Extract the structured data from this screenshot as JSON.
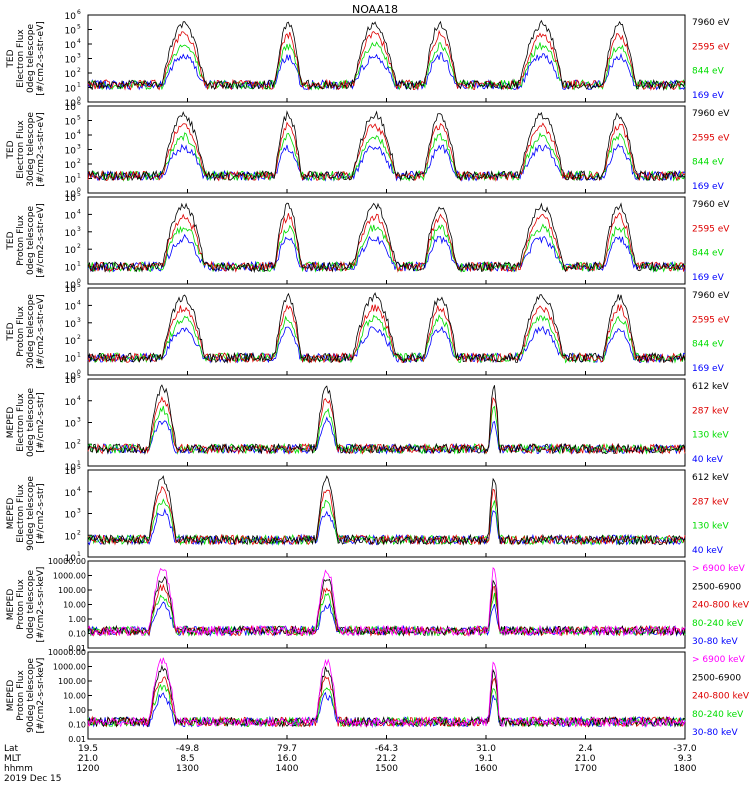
{
  "title": "NOAA18",
  "colors": {
    "black": "#000000",
    "red": "#dd0000",
    "green": "#00dd00",
    "blue": "#0000ff",
    "magenta": "#ff00ff"
  },
  "xaxis": {
    "row_labels": [
      "Lat",
      "MLT",
      "hhmm",
      "2019 Dec 15"
    ],
    "ticks": [
      {
        "lat": "19.5",
        "mlt": "21.0",
        "hhmm": "1200"
      },
      {
        "lat": "-49.8",
        "mlt": "8.5",
        "hhmm": "1300"
      },
      {
        "lat": "79.7",
        "mlt": "16.0",
        "hhmm": "1400"
      },
      {
        "lat": "-64.3",
        "mlt": "21.2",
        "hhmm": "1500"
      },
      {
        "lat": "31.0",
        "mlt": "9.1",
        "hhmm": "1600"
      },
      {
        "lat": "2.4",
        "mlt": "21.0",
        "hhmm": "1700"
      },
      {
        "lat": "-37.0",
        "mlt": "9.3",
        "hhmm": "1800"
      }
    ]
  },
  "chart_data": [
    {
      "type": "line",
      "ylabel": [
        "TED",
        "Electron Flux",
        "0deg telescope",
        "[#/cm2-s-str-eV]"
      ],
      "log": true,
      "ticks": [
        [
          "10",
          "0"
        ],
        [
          "10",
          "1"
        ],
        [
          "10",
          "2"
        ],
        [
          "10",
          "3"
        ],
        [
          "10",
          "4"
        ],
        [
          "10",
          "5"
        ],
        [
          "10",
          "6"
        ]
      ],
      "ylim_exp": [
        0,
        6
      ],
      "series": [
        {
          "name": "7960 eV",
          "color": "black"
        },
        {
          "name": "2595 eV",
          "color": "red"
        },
        {
          "name": "844 eV",
          "color": "green"
        },
        {
          "name": "169 eV",
          "color": "blue"
        }
      ]
    },
    {
      "type": "line",
      "ylabel": [
        "TED",
        "Electron Flux",
        "30deg telescope",
        "[#/cm2-s-str-eV]"
      ],
      "log": true,
      "ticks": [
        [
          "10",
          "0"
        ],
        [
          "10",
          "1"
        ],
        [
          "10",
          "2"
        ],
        [
          "10",
          "3"
        ],
        [
          "10",
          "4"
        ],
        [
          "10",
          "5"
        ],
        [
          "10",
          "6"
        ]
      ],
      "ylim_exp": [
        0,
        6
      ],
      "series": [
        {
          "name": "7960 eV",
          "color": "black"
        },
        {
          "name": "2595 eV",
          "color": "red"
        },
        {
          "name": "844 eV",
          "color": "green"
        },
        {
          "name": "169 eV",
          "color": "blue"
        }
      ]
    },
    {
      "type": "line",
      "ylabel": [
        "TED",
        "Proton Flux",
        "0deg telescope",
        "[#/cm2-s-str-eV]"
      ],
      "log": true,
      "ticks": [
        [
          "10",
          "0"
        ],
        [
          "10",
          "1"
        ],
        [
          "10",
          "2"
        ],
        [
          "10",
          "3"
        ],
        [
          "10",
          "4"
        ],
        [
          "10",
          "5"
        ]
      ],
      "ylim_exp": [
        0,
        5
      ],
      "series": [
        {
          "name": "7960 eV",
          "color": "black"
        },
        {
          "name": "2595 eV",
          "color": "red"
        },
        {
          "name": "844 eV",
          "color": "green"
        },
        {
          "name": "169 eV",
          "color": "blue"
        }
      ]
    },
    {
      "type": "line",
      "ylabel": [
        "TED",
        "Proton Flux",
        "30deg telescope",
        "[#/cm2-s-str-eV]"
      ],
      "log": true,
      "ticks": [
        [
          "10",
          "0"
        ],
        [
          "10",
          "1"
        ],
        [
          "10",
          "2"
        ],
        [
          "10",
          "3"
        ],
        [
          "10",
          "4"
        ],
        [
          "10",
          "5"
        ]
      ],
      "ylim_exp": [
        0,
        5
      ],
      "series": [
        {
          "name": "7960 eV",
          "color": "black"
        },
        {
          "name": "2595 eV",
          "color": "red"
        },
        {
          "name": "844 eV",
          "color": "green"
        },
        {
          "name": "169 eV",
          "color": "blue"
        }
      ]
    },
    {
      "type": "line",
      "ylabel": [
        "MEPED",
        "Electron Flux",
        "0deg telescope",
        "[#/cm2-s-str]"
      ],
      "log": true,
      "ticks": [
        [
          "10",
          "1"
        ],
        [
          "10",
          "2"
        ],
        [
          "10",
          "3"
        ],
        [
          "10",
          "4"
        ],
        [
          "10",
          "5"
        ]
      ],
      "ylim_exp": [
        1,
        5
      ],
      "series": [
        {
          "name": "612 keV",
          "color": "black"
        },
        {
          "name": "287 keV",
          "color": "red"
        },
        {
          "name": "130 keV",
          "color": "green"
        },
        {
          "name": "40 keV",
          "color": "blue"
        }
      ]
    },
    {
      "type": "line",
      "ylabel": [
        "MEPED",
        "Electron Flux",
        "90deg telescope",
        "[#/cm2-s-str]"
      ],
      "log": true,
      "ticks": [
        [
          "10",
          "1"
        ],
        [
          "10",
          "2"
        ],
        [
          "10",
          "3"
        ],
        [
          "10",
          "4"
        ],
        [
          "10",
          "5"
        ]
      ],
      "ylim_exp": [
        1,
        5
      ],
      "series": [
        {
          "name": "612 keV",
          "color": "black"
        },
        {
          "name": "287 keV",
          "color": "red"
        },
        {
          "name": "130 keV",
          "color": "green"
        },
        {
          "name": "40 keV",
          "color": "blue"
        }
      ]
    },
    {
      "type": "line",
      "ylabel": [
        "MEPED",
        "Proton Flux",
        "0deg telescope",
        "[#/cm2-s-sr-keV]"
      ],
      "log": true,
      "ticks": [
        [
          "0.01"
        ],
        [
          "0.10"
        ],
        [
          "1.00"
        ],
        [
          "10.00"
        ],
        [
          "100.00"
        ],
        [
          "1000.00"
        ],
        [
          "10000.00"
        ]
      ],
      "ylim_exp": [
        -2,
        4
      ],
      "series": [
        {
          "name": "> 6900 keV",
          "color": "magenta"
        },
        {
          "name": "2500-6900",
          "color": "black"
        },
        {
          "name": "240-800 keV",
          "color": "red"
        },
        {
          "name": "80-240 keV",
          "color": "green"
        },
        {
          "name": "30-80 keV",
          "color": "blue"
        }
      ]
    },
    {
      "type": "line",
      "ylabel": [
        "MEPED",
        "Proton Flux",
        "90deg telescope",
        "[#/cm2-s-sr-keV]"
      ],
      "log": true,
      "ticks": [
        [
          "0.01"
        ],
        [
          "0.10"
        ],
        [
          "1.00"
        ],
        [
          "10.00"
        ],
        [
          "100.00"
        ],
        [
          "1000.00"
        ],
        [
          "10000.00"
        ]
      ],
      "ylim_exp": [
        -2,
        4
      ],
      "series": [
        {
          "name": "> 6900 keV",
          "color": "magenta"
        },
        {
          "name": "2500-6900",
          "color": "black"
        },
        {
          "name": "240-800 keV",
          "color": "red"
        },
        {
          "name": "80-240 keV",
          "color": "green"
        },
        {
          "name": "30-80 keV",
          "color": "blue"
        }
      ]
    }
  ]
}
